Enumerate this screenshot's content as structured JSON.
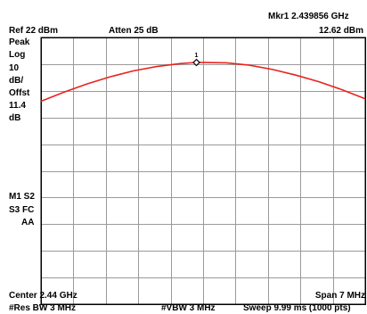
{
  "header": {
    "marker_readout": "Mkr1  2.439856 GHz",
    "ref_level": "Ref 22 dBm",
    "attenuation": "Atten 25 dB",
    "marker_amplitude": "12.62 dBm"
  },
  "left_panel": {
    "detector": "Peak",
    "scale_type": "Log",
    "scale_value": "10",
    "scale_unit": "dB/",
    "offset_label": "Offst",
    "offset_value": "11.4",
    "offset_unit": "dB",
    "status_line1": "M1  S2",
    "status_line2": "S3  FC",
    "status_line3": "AA"
  },
  "footer": {
    "center": "Center 2.44 GHz",
    "span": "Span 7 MHz",
    "rbw": "#Res BW 3 MHz",
    "vbw": "#VBW 3 MHz",
    "sweep": "Sweep 9.99 ms (1000 pts)"
  },
  "colors": {
    "trace": "#e8231f",
    "grid": "#9a9a9a",
    "frame": "#000000",
    "marker": "#000000"
  },
  "chart_data": {
    "type": "line",
    "title": "",
    "xlabel": "",
    "ylabel": "",
    "x_unit": "MHz",
    "y_unit": "dBm",
    "xlim": [
      2436.5,
      2443.5
    ],
    "ylim": [
      -78,
      22
    ],
    "grid": true,
    "series": [
      {
        "x": [
          2436.5,
          2437.0,
          2437.5,
          2438.0,
          2438.5,
          2439.0,
          2439.5,
          2439.856,
          2440.0,
          2440.5,
          2441.0,
          2441.5,
          2442.0,
          2442.5,
          2443.0,
          2443.5
        ],
        "y": [
          -1.9,
          1.5,
          4.6,
          7.3,
          9.5,
          11.1,
          12.2,
          12.62,
          12.6,
          12.5,
          11.6,
          10.0,
          7.9,
          5.4,
          2.4,
          -1.0
        ]
      }
    ],
    "markers": [
      {
        "label": "1",
        "x": 2439.856,
        "y": 12.62
      }
    ]
  }
}
